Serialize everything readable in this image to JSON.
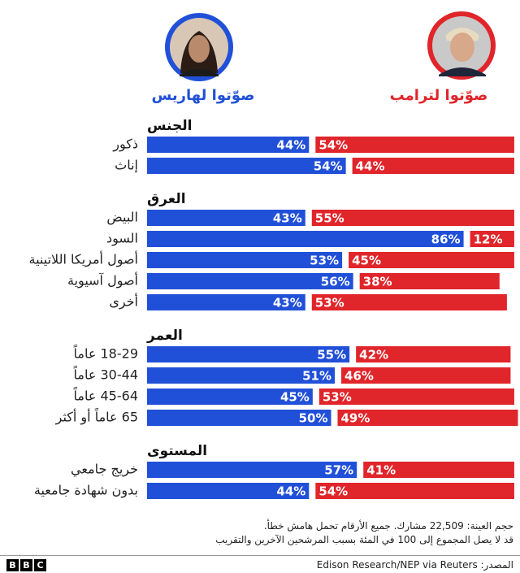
{
  "chart_data": {
    "type": "bar",
    "series": [
      {
        "name": "صوّتوا لهاريس",
        "color": "#2150d8"
      },
      {
        "name": "صوّتوا لترامب",
        "color": "#e0252b"
      }
    ],
    "groups": [
      {
        "title": "الجنس",
        "categories": [
          "ذكور",
          "إناث"
        ],
        "series": [
          {
            "values": [
              44,
              54
            ],
            "value_labels": [
              "44%",
              "54%"
            ]
          },
          {
            "values": [
              54,
              44
            ],
            "value_labels": [
              "54%",
              "44%"
            ]
          }
        ]
      },
      {
        "title": "العرق",
        "categories": [
          "البيض",
          "السود",
          "أصول أمريكا اللاتينية",
          "أصول آسيوية",
          "أخرى"
        ],
        "series": [
          {
            "values": [
              43,
              86,
              53,
              56,
              43
            ],
            "value_labels": [
              "43%",
              "86%",
              "53%",
              "56%",
              "43%"
            ]
          },
          {
            "values": [
              55,
              12,
              45,
              38,
              53
            ],
            "value_labels": [
              "55%",
              "12%",
              "45%",
              "38%",
              "53%"
            ]
          }
        ]
      },
      {
        "title": "العمر",
        "categories": [
          "18-29 عاماً",
          "30-44 عاماً",
          "45-64 عاماً",
          "65 عاماً أو أكثر"
        ],
        "series": [
          {
            "values": [
              55,
              51,
              45,
              50
            ],
            "value_labels": [
              "55%",
              "51%",
              "45%",
              "50%"
            ]
          },
          {
            "values": [
              42,
              46,
              53,
              49
            ],
            "value_labels": [
              "42%",
              "46%",
              "53%",
              "49%"
            ]
          }
        ]
      },
      {
        "title": "المستوى",
        "categories": [
          "خريج جامعي",
          "بدون شهادة جامعية"
        ],
        "series": [
          {
            "values": [
              57,
              44
            ],
            "value_labels": [
              "57%",
              "44%"
            ]
          },
          {
            "values": [
              41,
              54
            ],
            "value_labels": [
              "41%",
              "54%"
            ]
          }
        ]
      }
    ],
    "notes": [
      "حجم العينة: 22,509 مشارك. جميع الأرقام تحمل هامش خطأ.",
      "قد لا يصل المجموع إلى 100 في المئة بسبب المرشحين الآخرين والتقريب"
    ],
    "source": "المصدر: Edison Research/NEP via Reuters",
    "logo": [
      "B",
      "B",
      "C"
    ]
  }
}
